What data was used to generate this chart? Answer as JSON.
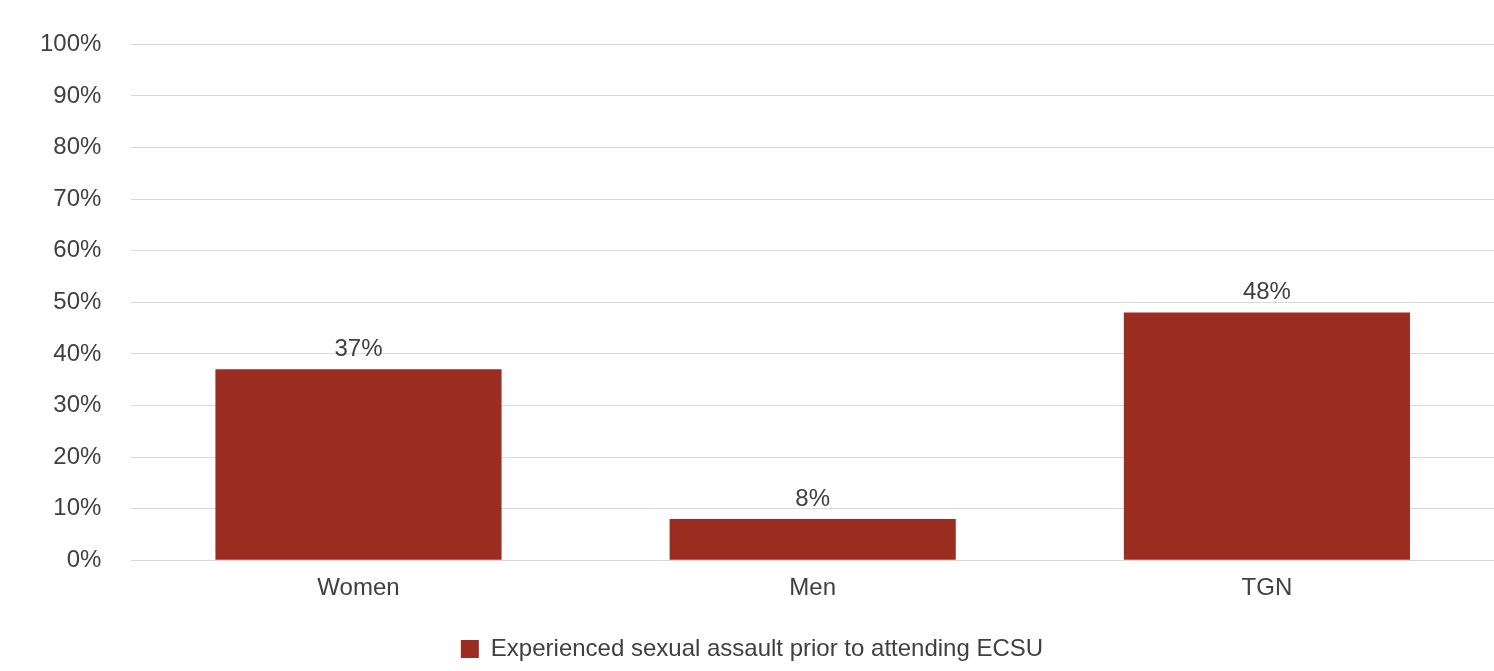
{
  "chart_data": {
    "type": "bar",
    "categories": [
      "Women",
      "Men",
      "TGN"
    ],
    "series": [
      {
        "name": "Experienced sexual assault prior to attending ECSU",
        "color": "#9b2d20",
        "values": [
          37,
          8,
          48
        ]
      }
    ],
    "ylim": [
      0,
      100
    ],
    "yticks": [
      {
        "value": 0,
        "label": "0%"
      },
      {
        "value": 10,
        "label": "10%"
      },
      {
        "value": 20,
        "label": "20%"
      },
      {
        "value": 30,
        "label": "30%"
      },
      {
        "value": 40,
        "label": "40%"
      },
      {
        "value": 50,
        "label": "50%"
      },
      {
        "value": 60,
        "label": "60%"
      },
      {
        "value": 70,
        "label": "70%"
      },
      {
        "value": 80,
        "label": "80%"
      },
      {
        "value": 90,
        "label": "90%"
      },
      {
        "value": 100,
        "label": "100%"
      }
    ],
    "value_labels": [
      [
        "37%",
        "8%",
        "48%"
      ]
    ],
    "grid": "y",
    "legend": "bottom"
  }
}
